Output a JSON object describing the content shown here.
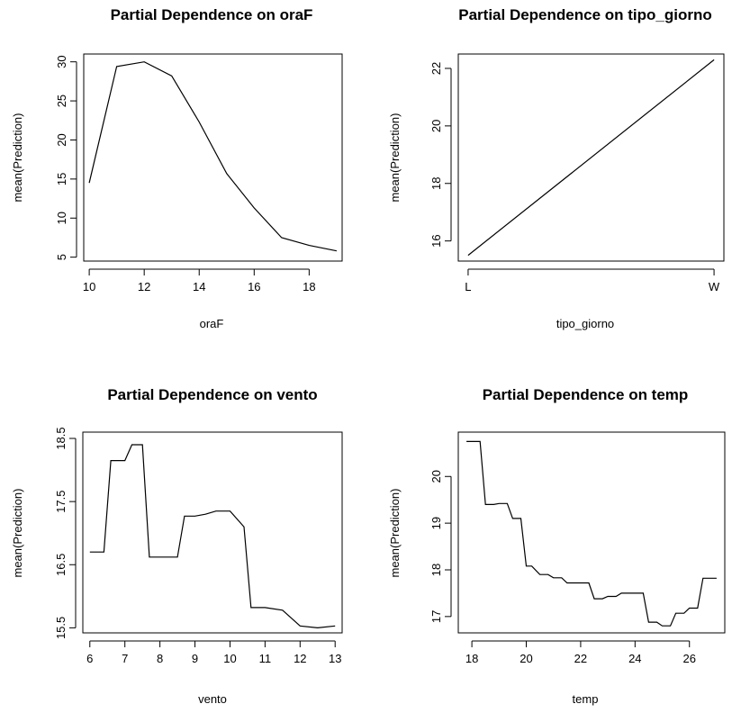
{
  "chart_data": [
    {
      "type": "line",
      "title": "Partial Dependence on oraF",
      "xlabel": "oraF",
      "ylabel": "mean(Prediction)",
      "xlim": [
        9.8,
        19.2
      ],
      "ylim": [
        4.5,
        31.0
      ],
      "xticks": [
        10,
        12,
        14,
        16,
        18
      ],
      "yticks": [
        5,
        10,
        15,
        20,
        25,
        30
      ],
      "x": [
        10,
        11,
        12,
        13,
        14,
        15,
        16,
        17,
        18,
        19
      ],
      "y": [
        14.5,
        29.4,
        30.0,
        28.2,
        22.3,
        15.7,
        11.3,
        7.5,
        6.5,
        5.8
      ]
    },
    {
      "type": "line",
      "title": "Partial Dependence on tipo_giorno",
      "xlabel": "tipo_giorno",
      "ylabel": "mean(Prediction)",
      "categories": [
        "L",
        "W"
      ],
      "ylim": [
        15.3,
        22.5
      ],
      "yticks": [
        16,
        18,
        20,
        22
      ],
      "values": [
        15.5,
        22.3
      ]
    },
    {
      "type": "line",
      "title": "Partial Dependence on vento",
      "xlabel": "vento",
      "ylabel": "mean(Prediction)",
      "xlim": [
        5.8,
        13.2
      ],
      "ylim": [
        15.42,
        18.6
      ],
      "xticks": [
        6,
        7,
        8,
        9,
        10,
        11,
        12,
        13
      ],
      "yticks": [
        15.5,
        16.5,
        17.5,
        18.5
      ],
      "yticklabels": [
        "15.5",
        "16.5",
        "17.5",
        "18.5"
      ],
      "x": [
        6.0,
        6.4,
        6.6,
        7.0,
        7.2,
        7.5,
        7.7,
        8.0,
        8.5,
        8.7,
        9.0,
        9.3,
        9.6,
        10.0,
        10.4,
        10.6,
        11.0,
        11.5,
        12.0,
        12.5,
        13.0
      ],
      "y": [
        16.7,
        16.7,
        18.15,
        18.15,
        18.4,
        18.4,
        16.62,
        16.62,
        16.62,
        17.27,
        17.27,
        17.3,
        17.35,
        17.35,
        17.1,
        15.82,
        15.82,
        15.78,
        15.53,
        15.5,
        15.53
      ]
    },
    {
      "type": "line",
      "title": "Partial Dependence on temp",
      "xlabel": "temp",
      "ylabel": "mean(Prediction)",
      "xlim": [
        17.5,
        27.3
      ],
      "ylim": [
        16.65,
        20.95
      ],
      "xticks": [
        18,
        20,
        22,
        24,
        26
      ],
      "yticks": [
        17,
        18,
        19,
        20
      ],
      "x": [
        17.8,
        18.0,
        18.3,
        18.5,
        18.8,
        19.0,
        19.3,
        19.5,
        19.8,
        20.0,
        20.2,
        20.5,
        20.8,
        21.0,
        21.3,
        21.5,
        21.8,
        22.0,
        22.3,
        22.5,
        22.8,
        23.0,
        23.3,
        23.5,
        23.8,
        24.0,
        24.3,
        24.5,
        24.8,
        25.0,
        25.3,
        25.5,
        25.8,
        26.0,
        26.3,
        26.5,
        26.8,
        27.0
      ],
      "y": [
        20.75,
        20.75,
        20.75,
        19.4,
        19.4,
        19.42,
        19.42,
        19.1,
        19.1,
        18.08,
        18.08,
        17.9,
        17.9,
        17.83,
        17.83,
        17.72,
        17.72,
        17.72,
        17.72,
        17.38,
        17.38,
        17.43,
        17.43,
        17.5,
        17.5,
        17.5,
        17.5,
        16.88,
        16.88,
        16.8,
        16.8,
        17.07,
        17.07,
        17.18,
        17.18,
        17.82,
        17.82,
        17.82
      ]
    }
  ]
}
